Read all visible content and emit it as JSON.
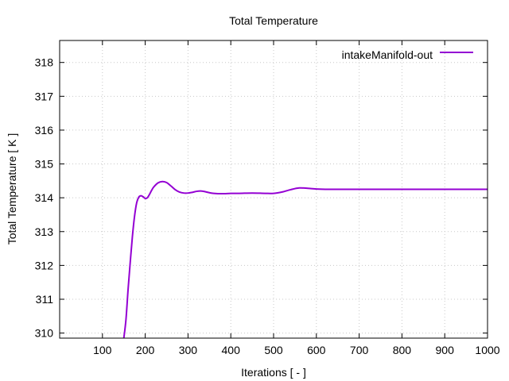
{
  "chart_data": {
    "type": "line",
    "title": "Total Temperature",
    "xlabel": "Iterations [ - ]",
    "ylabel": "Total Temperature [ K ]",
    "xlim": [
      0,
      1000
    ],
    "ylim": [
      309.85,
      318.65
    ],
    "xticks": [
      100,
      200,
      300,
      400,
      500,
      600,
      700,
      800,
      900,
      1000
    ],
    "yticks": [
      310,
      311,
      312,
      313,
      314,
      315,
      316,
      317,
      318
    ],
    "grid": true,
    "legend_position": "top-right",
    "series": [
      {
        "name": "intakeManifold-out",
        "color": "#9400d3",
        "x": [
          150,
          155,
          160,
          165,
          170,
          175,
          180,
          185,
          190,
          195,
          200,
          205,
          210,
          215,
          220,
          230,
          240,
          250,
          260,
          270,
          280,
          290,
          300,
          310,
          320,
          330,
          340,
          350,
          360,
          380,
          400,
          420,
          450,
          480,
          500,
          520,
          540,
          560,
          580,
          600,
          630,
          660,
          700,
          800,
          900,
          1000
        ],
        "y": [
          309.85,
          310.4,
          311.3,
          312.1,
          312.85,
          313.45,
          313.85,
          314.02,
          314.06,
          314.03,
          313.98,
          314.0,
          314.1,
          314.22,
          314.32,
          314.44,
          314.48,
          314.45,
          314.35,
          314.24,
          314.17,
          314.14,
          314.14,
          314.16,
          314.19,
          314.2,
          314.18,
          314.15,
          314.13,
          314.12,
          314.13,
          314.13,
          314.14,
          314.13,
          314.13,
          314.17,
          314.24,
          314.29,
          314.28,
          314.26,
          314.25,
          314.25,
          314.25,
          314.25,
          314.25,
          314.25
        ]
      }
    ]
  }
}
